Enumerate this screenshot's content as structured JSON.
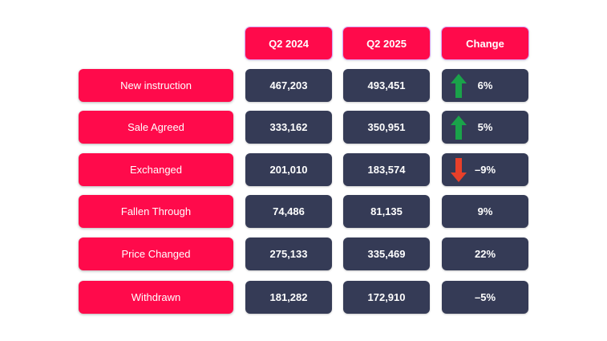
{
  "chart_data": {
    "type": "table",
    "columns": [
      "Q2 2024",
      "Q2 2025",
      "Change"
    ],
    "rows": [
      {
        "label": "New instruction",
        "q2_2024": "467,203",
        "q2_2025": "493,451",
        "change": "6%",
        "trend": "up"
      },
      {
        "label": "Sale Agreed",
        "q2_2024": "333,162",
        "q2_2025": "350,951",
        "change": "5%",
        "trend": "up"
      },
      {
        "label": "Exchanged",
        "q2_2024": "201,010",
        "q2_2025": "183,574",
        "change": "-9%",
        "trend": "down"
      },
      {
        "label": "Fallen Through",
        "q2_2024": "74,486",
        "q2_2025": "81,135",
        "change": "9%",
        "trend": "none"
      },
      {
        "label": "Price Changed",
        "q2_2024": "275,133",
        "q2_2025": "335,469",
        "change": "22%",
        "trend": "none"
      },
      {
        "label": "Withdrawn",
        "q2_2024": "181,282",
        "q2_2025": "172,910",
        "change": "-5%",
        "trend": "none"
      }
    ],
    "colors": {
      "header_bg": "#ff0a4b",
      "label_bg": "#ff0a4b",
      "value_bg": "#353b56",
      "up_arrow": "#1aa34a",
      "down_arrow": "#e8402a"
    }
  }
}
